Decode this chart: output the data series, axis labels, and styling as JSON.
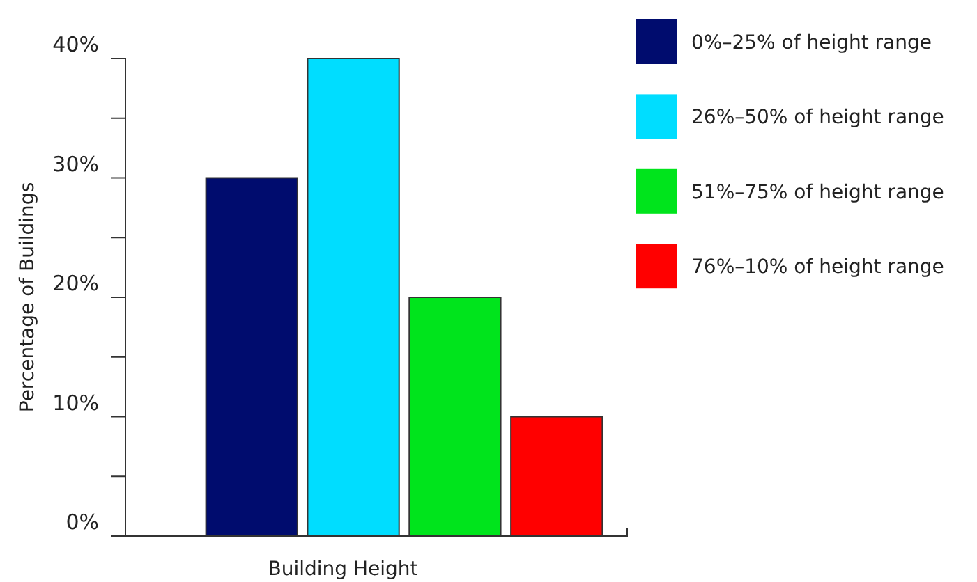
{
  "chart_data": {
    "type": "bar",
    "xlabel": "Building Height",
    "ylabel": "Percentage of Buildings",
    "categories": [
      null
    ],
    "series": [
      {
        "name": "0%–25% of height range",
        "color": "#000c6e",
        "values": [
          30
        ]
      },
      {
        "name": "26%–50% of height range",
        "color": "#00ddff",
        "values": [
          40
        ]
      },
      {
        "name": "51%–75% of height range",
        "color": "#00e41c",
        "values": [
          20
        ]
      },
      {
        "name": "76%–10% of height range",
        "color": "#ff0000",
        "values": [
          10
        ]
      }
    ],
    "ylim": [
      0,
      40
    ],
    "yticks": [
      {
        "value": 0,
        "label": "0%"
      },
      {
        "value": 5,
        "label": null
      },
      {
        "value": 10,
        "label": "10%"
      },
      {
        "value": 15,
        "label": null
      },
      {
        "value": 20,
        "label": "20%"
      },
      {
        "value": 25,
        "label": null
      },
      {
        "value": 30,
        "label": "30%"
      },
      {
        "value": 35,
        "label": null
      },
      {
        "value": 40,
        "label": "40%"
      }
    ],
    "grid": false,
    "legend": "top right"
  }
}
